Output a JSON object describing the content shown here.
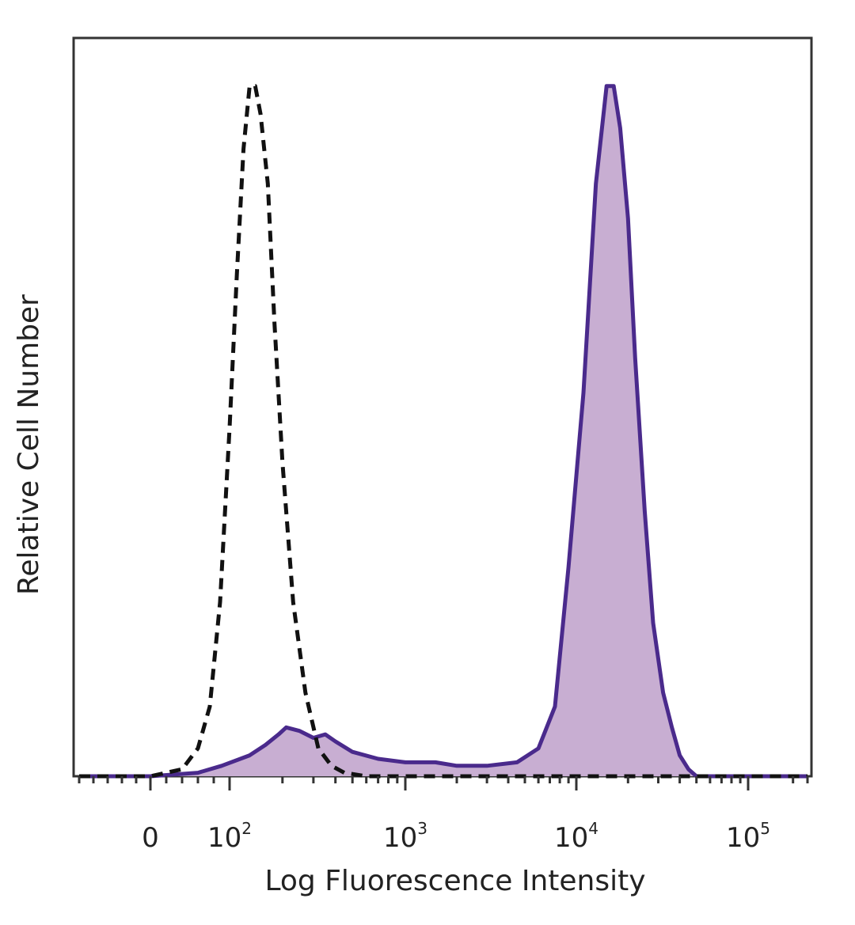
{
  "chart_data": {
    "type": "area",
    "title": "",
    "xlabel": "Log Fluorescence Intensity",
    "ylabel": "Relative Cell Number",
    "x_scale": "biexponential",
    "xlim": [
      -100,
      250000
    ],
    "ylim": [
      0,
      1
    ],
    "grid": false,
    "x_ticks": [
      {
        "value": 0,
        "base": "0",
        "exp": ""
      },
      {
        "value": 100,
        "base": "10",
        "exp": "2"
      },
      {
        "value": 1000,
        "base": "10",
        "exp": "3"
      },
      {
        "value": 10000,
        "base": "10",
        "exp": "4"
      },
      {
        "value": 100000,
        "base": "10",
        "exp": "5"
      }
    ],
    "series": [
      {
        "style": "dashed",
        "color": "#111111",
        "fill": "none",
        "points": [
          [
            -100,
            0.0
          ],
          [
            0,
            0.0
          ],
          [
            40,
            0.01
          ],
          [
            60,
            0.04
          ],
          [
            75,
            0.1
          ],
          [
            88,
            0.25
          ],
          [
            100,
            0.5
          ],
          [
            110,
            0.72
          ],
          [
            120,
            0.9
          ],
          [
            130,
            0.99
          ],
          [
            140,
            0.99
          ],
          [
            150,
            0.95
          ],
          [
            165,
            0.85
          ],
          [
            180,
            0.65
          ],
          [
            200,
            0.45
          ],
          [
            230,
            0.25
          ],
          [
            270,
            0.12
          ],
          [
            320,
            0.04
          ],
          [
            380,
            0.015
          ],
          [
            450,
            0.005
          ],
          [
            600,
            0.0
          ],
          [
            250000,
            0.0
          ]
        ]
      },
      {
        "style": "solid",
        "color": "#4a2a8c",
        "fill": "#c8aed2",
        "points": [
          [
            -100,
            0.0
          ],
          [
            0,
            0.0
          ],
          [
            60,
            0.005
          ],
          [
            90,
            0.015
          ],
          [
            130,
            0.03
          ],
          [
            160,
            0.045
          ],
          [
            190,
            0.06
          ],
          [
            210,
            0.07
          ],
          [
            250,
            0.065
          ],
          [
            300,
            0.055
          ],
          [
            350,
            0.06
          ],
          [
            400,
            0.05
          ],
          [
            500,
            0.035
          ],
          [
            700,
            0.025
          ],
          [
            1000,
            0.02
          ],
          [
            1500,
            0.02
          ],
          [
            2000,
            0.015
          ],
          [
            3000,
            0.015
          ],
          [
            4500,
            0.02
          ],
          [
            6000,
            0.04
          ],
          [
            7500,
            0.1
          ],
          [
            9000,
            0.3
          ],
          [
            11000,
            0.55
          ],
          [
            13000,
            0.85
          ],
          [
            15000,
            0.99
          ],
          [
            16500,
            0.99
          ],
          [
            18000,
            0.93
          ],
          [
            20000,
            0.8
          ],
          [
            22000,
            0.6
          ],
          [
            25000,
            0.38
          ],
          [
            28000,
            0.22
          ],
          [
            32000,
            0.12
          ],
          [
            36000,
            0.07
          ],
          [
            40000,
            0.03
          ],
          [
            45000,
            0.01
          ],
          [
            50000,
            0.0
          ],
          [
            250000,
            0.0
          ]
        ]
      }
    ]
  }
}
